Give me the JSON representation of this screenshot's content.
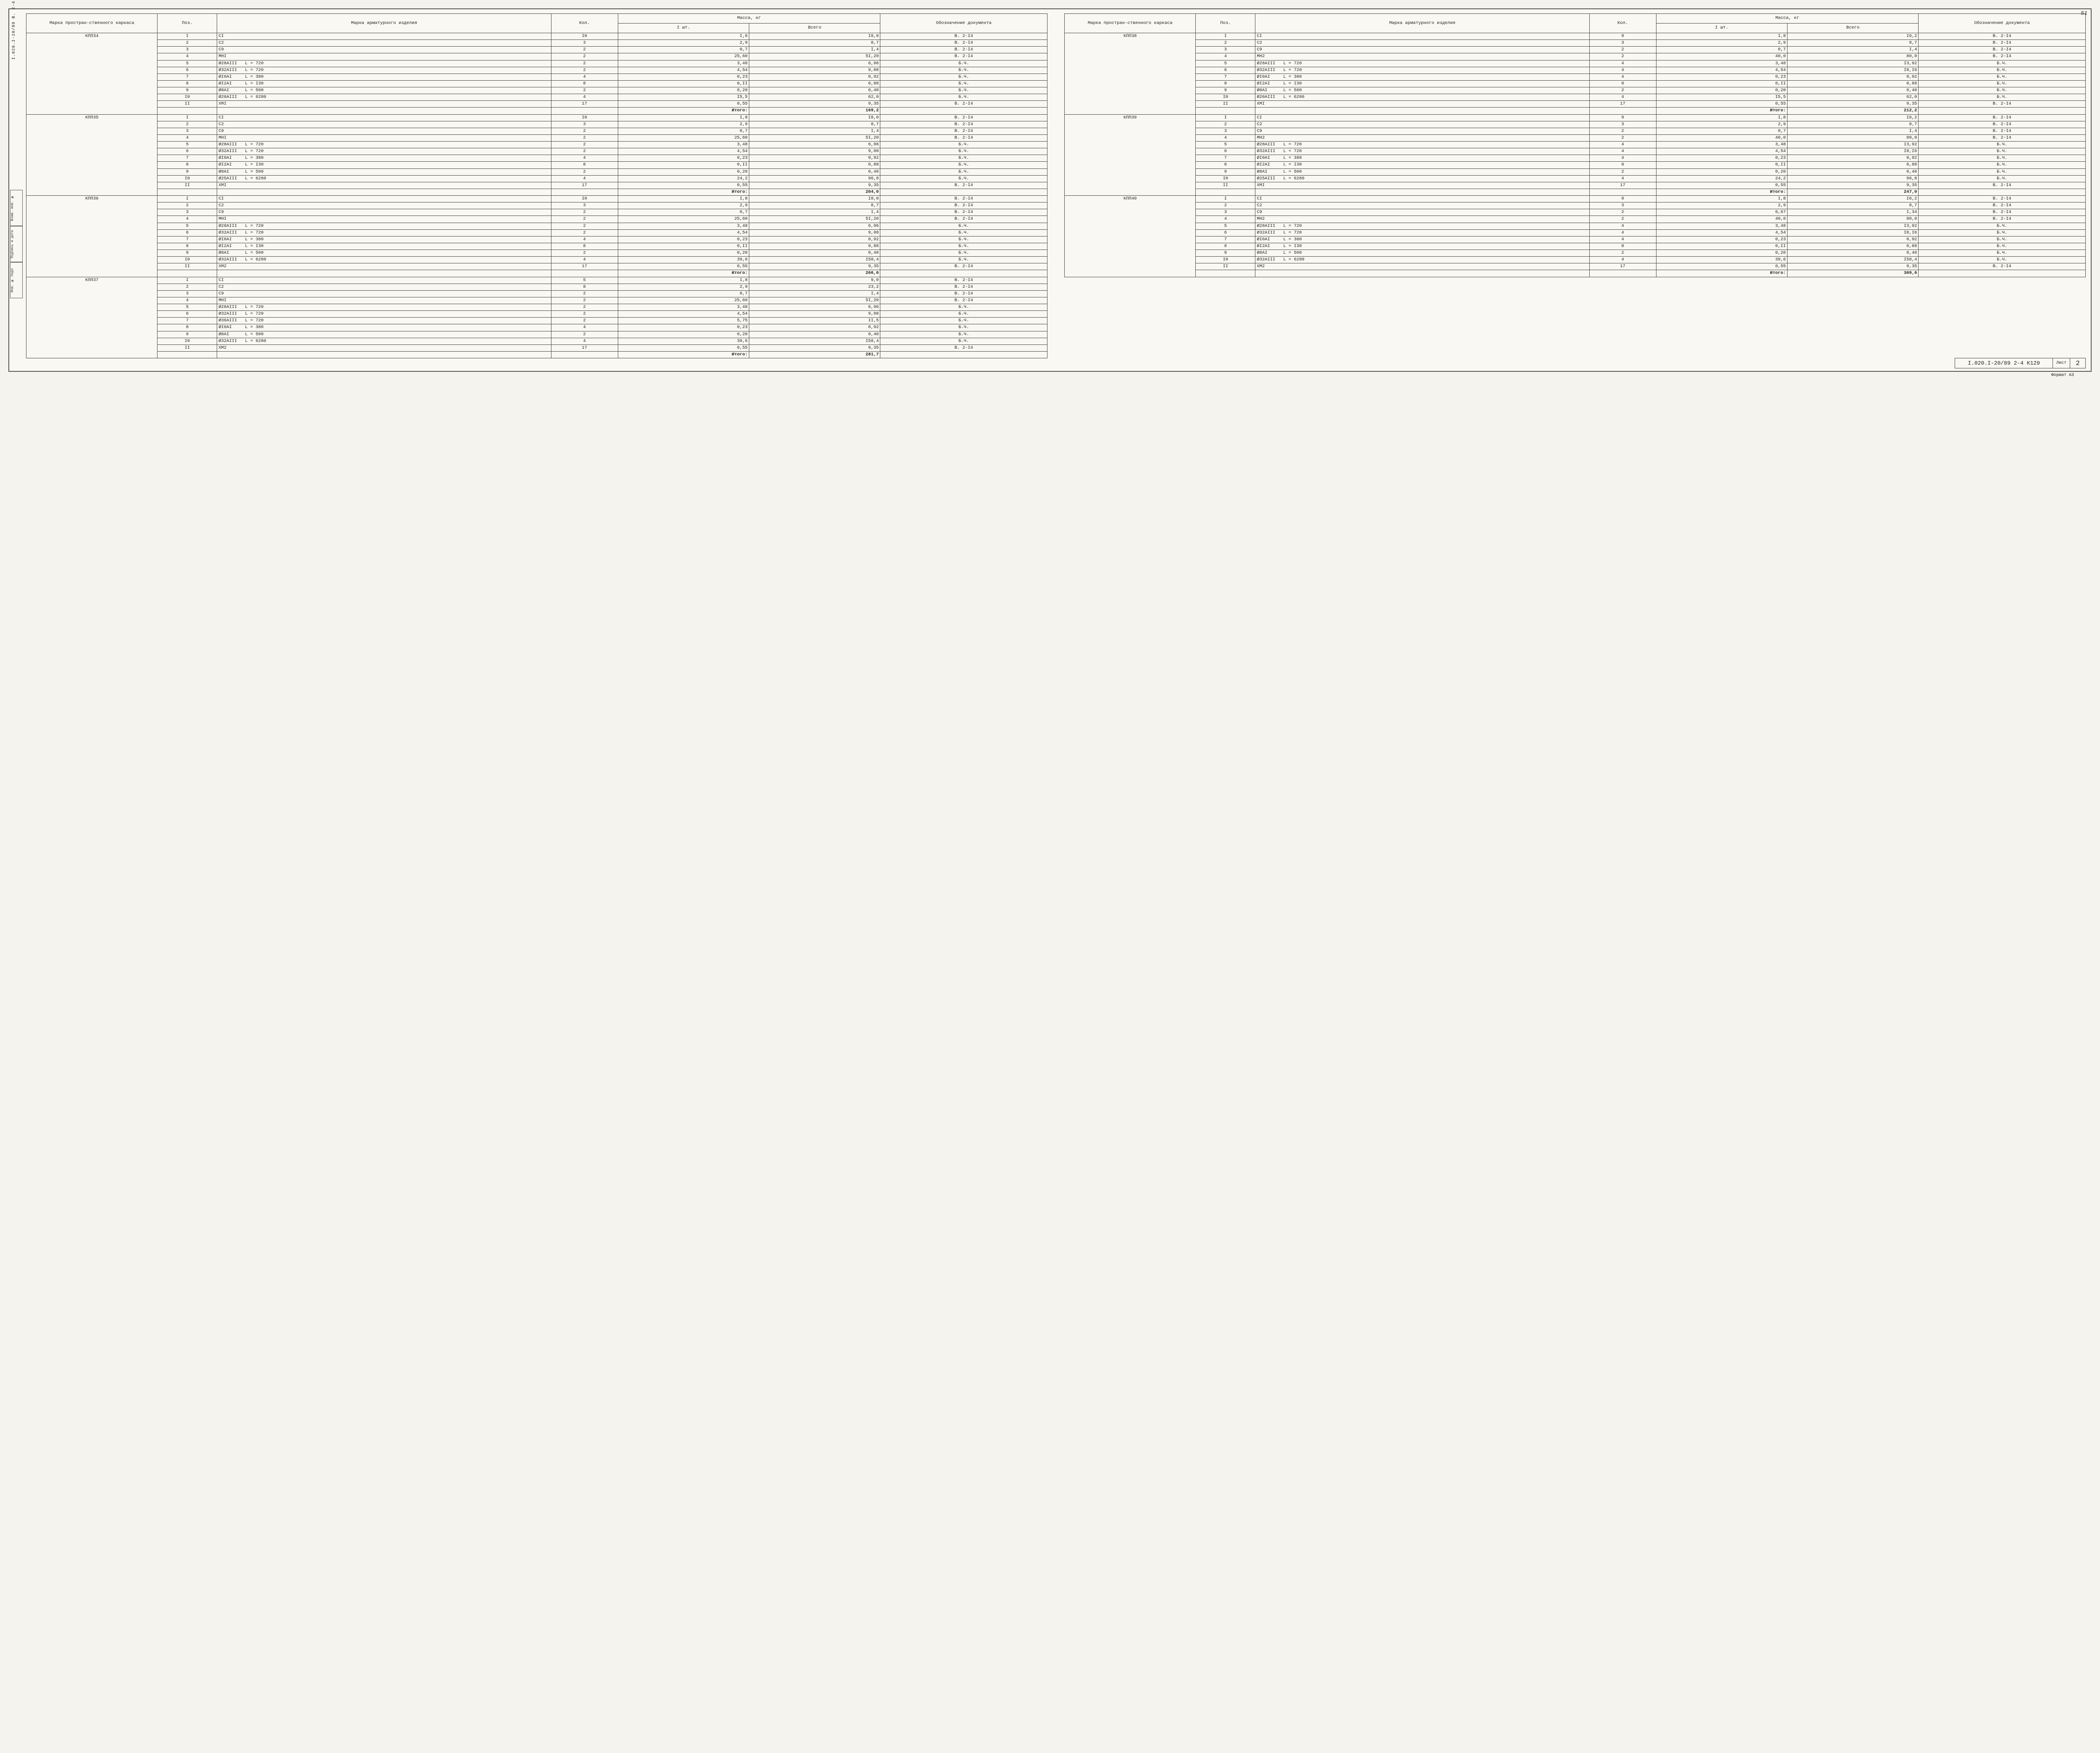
{
  "pageTop": "51",
  "sideText": "I.020.I-20/89  В. 2-4  ч.2",
  "sideBoxes": [
    "Взам. инв. №",
    "Подпись и дата",
    "Инв. № подл"
  ],
  "headers": {
    "karkas": "Марка простран-ственного каркаса",
    "pos": "Поз.",
    "marka": "Марка арматурного изделия",
    "kol": "Кол.",
    "massa": "Масса, кг",
    "m1": "I шт.",
    "m2": "Всего",
    "doc": "Обозначение документа"
  },
  "itogoLabel": "Итого:",
  "blocks": [
    {
      "karkas": "КПП34",
      "rows": [
        [
          "I",
          "CI",
          "I0",
          "I,8",
          "I8,0",
          "В. 2-I4"
        ],
        [
          "2",
          "C2",
          "3",
          "2,9",
          "8,7",
          "В. 2-I4"
        ],
        [
          "3",
          "C9",
          "2",
          "0,7",
          "I,4",
          "В. 2-I4"
        ],
        [
          "4",
          "МНI",
          "2",
          "25,60",
          "5I,20",
          "В. 2-I4"
        ],
        [
          "5",
          "Ø28АIII   L = 720",
          "2",
          "3,48",
          "6,96",
          "Б.Ч."
        ],
        [
          "6",
          "Ø32АIII   L = 720",
          "2",
          "4,54",
          "9,08",
          "Б.Ч."
        ],
        [
          "7",
          "ØI0AI     L = 380",
          "4",
          "0,23",
          "0,92",
          "Б.Ч."
        ],
        [
          "8",
          "ØI2AI     L = I30",
          "8",
          "0,II",
          "0,88",
          "Б.Ч."
        ],
        [
          "9",
          "Ø8AI      L = 500",
          "2",
          "0,20",
          "0,40",
          "Б.Ч."
        ],
        [
          "I0",
          "Ø20АIII   L = 6280",
          "4",
          "I5,5",
          "62,0",
          "Б.Ч."
        ],
        [
          "II",
          "ХМI",
          "17",
          "0,55",
          "9,35",
          "В. 2-I4"
        ]
      ],
      "itogo": "169,2"
    },
    {
      "karkas": "КПП35",
      "rows": [
        [
          "I",
          "CI",
          "I0",
          "I,8",
          "I8,0",
          "В. 2-I4"
        ],
        [
          "2",
          "C2",
          "3",
          "2,9",
          "8,7",
          "В. 2-I4"
        ],
        [
          "3",
          "C9",
          "2",
          "0,7",
          "I,4",
          "В. 2-I4"
        ],
        [
          "4",
          "МНI",
          "2",
          "25,60",
          "5I,20",
          "В. 2-I4"
        ],
        [
          "5",
          "Ø28АIII   L = 720",
          "2",
          "3,48",
          "6,96",
          "Б.Ч."
        ],
        [
          "6",
          "Ø32АIII   L = 720",
          "2",
          "4,54",
          "9,08",
          "Б.Ч."
        ],
        [
          "7",
          "ØI0AI     L = 380",
          "4",
          "0,23",
          "0,92",
          "Б.Ч."
        ],
        [
          "8",
          "ØI2AI     L = I30",
          "8",
          "0,II",
          "0,88",
          "Б.Ч."
        ],
        [
          "9",
          "Ø8AI      L = 500",
          "2",
          "0,20",
          "0,40",
          "Б.Ч."
        ],
        [
          "I0",
          "Ø25АIII   L = 6280",
          "4",
          "24,2",
          "96,8",
          "Б.Ч."
        ],
        [
          "II",
          "ХМI",
          "17",
          "0,55",
          "9,35",
          "В. 2-I4"
        ]
      ],
      "itogo": "204,0"
    },
    {
      "karkas": "КПП36",
      "rows": [
        [
          "I",
          "CI",
          "I0",
          "I,8",
          "I8,0",
          "В. 2-I4"
        ],
        [
          "2",
          "C2",
          "3",
          "2,9",
          "8,7",
          "В. 2-I4"
        ],
        [
          "3",
          "C9",
          "2",
          "0,7",
          "I,4",
          "В. 2-I4"
        ],
        [
          "4",
          "МНI",
          "2",
          "25,60",
          "5I,20",
          "В. 2-I4"
        ],
        [
          "5",
          "Ø28АIII   L = 720",
          "2",
          "3,48",
          "6,96",
          "Б.Ч."
        ],
        [
          "6",
          "Ø32АIII   L = 720",
          "2",
          "4,54",
          "9,08",
          "Б.Ч."
        ],
        [
          "7",
          "ØI0AI     L = 380",
          "4",
          "0,23",
          "0,92",
          "Б.Ч."
        ],
        [
          "8",
          "ØI2AI     L = I30",
          "8",
          "0,II",
          "0,88",
          "Б.Ч."
        ],
        [
          "9",
          "Ø8AI      L = 500",
          "2",
          "0,20",
          "0,40",
          "Б.Ч."
        ],
        [
          "I0",
          "Ø32АIII   L = 6280",
          "4",
          "39,6",
          "I58,4",
          "Б.Ч."
        ],
        [
          "II",
          "ХМ2",
          "17",
          "0,55",
          "9,35",
          "В. 2-I4"
        ]
      ],
      "itogo": "266,0"
    },
    {
      "karkas": "КПП37",
      "rows": [
        [
          "I",
          "CI",
          "5",
          "I,8",
          "9,0",
          "В. 2-I4"
        ],
        [
          "2",
          "C2",
          "8",
          "2,9",
          "23,2",
          "В. 2-I4"
        ],
        [
          "3",
          "C9",
          "2",
          "0,7",
          "I,4",
          "В. 2-I4"
        ],
        [
          "4",
          "МНI",
          "2",
          "25,60",
          "5I,20",
          "В. 2-I4"
        ],
        [
          "5",
          "Ø28АIII   L = 720",
          "2",
          "3,48",
          "6,96",
          "Б.Ч."
        ],
        [
          "6",
          "Ø32АIII   L = 720",
          "2",
          "4,54",
          "9,08",
          "Б.Ч."
        ],
        [
          "7",
          "Ø36АIII   L = 720",
          "2",
          "5,75",
          "II,5",
          "Б.Ч."
        ],
        [
          "8",
          "ØI0AI     L = 380",
          "4",
          "0,23",
          "0,92",
          "Б.Ч."
        ],
        [
          "9",
          "Ø8AI      L = 500",
          "2",
          "0,20",
          "0,40",
          "Б.Ч."
        ],
        [
          "I0",
          "Ø32АIII   L = 6280",
          "4",
          "39,6",
          "I58,4",
          "Б.Ч."
        ],
        [
          "II",
          "ХМ2",
          "17",
          "0,55",
          "9,35",
          "В. 2-I4"
        ]
      ],
      "itogo": "281,7"
    },
    {
      "karkas": "КПП38",
      "rows": [
        [
          "I",
          "CI",
          "9",
          "I,8",
          "I6,2",
          "В. 2-I4"
        ],
        [
          "2",
          "C2",
          "3",
          "2,9",
          "8,7",
          "В. 2-I4"
        ],
        [
          "3",
          "C9",
          "2",
          "0,7",
          "I,4",
          "В. 2-I4"
        ],
        [
          "4",
          "МН2",
          "2",
          "40,0",
          "80,0",
          "В. 2-I4"
        ],
        [
          "5",
          "Ø28АIII   L = 720",
          "4",
          "3,48",
          "I3,92",
          "Б.Ч."
        ],
        [
          "6",
          "Ø32АIII   L = 720",
          "4",
          "4,54",
          "I8,I6",
          "Б.Ч."
        ],
        [
          "7",
          "ØI0AI     L = 380",
          "4",
          "0,23",
          "0,92",
          "Б.Ч."
        ],
        [
          "8",
          "ØI2AI     L = I30",
          "8",
          "0,II",
          "0,88",
          "Б.Ч."
        ],
        [
          "9",
          "Ø8AI      L = 500",
          "2",
          "0,20",
          "0,40",
          "Б.Ч."
        ],
        [
          "I0",
          "Ø20АIII   L = 6280",
          "4",
          "I5,5",
          "62,0",
          "Б.Ч."
        ],
        [
          "II",
          "ХМI",
          "17",
          "0,55",
          "9,35",
          "В. 2-I4"
        ]
      ],
      "itogo": "212,2"
    },
    {
      "karkas": "КПП39",
      "rows": [
        [
          "I",
          "CI",
          "9",
          "I,8",
          "I6,2",
          "В. 2-I4"
        ],
        [
          "2",
          "C2",
          "3",
          "2,9",
          "8,7",
          "В. 2-I4"
        ],
        [
          "3",
          "C9",
          "2",
          "0,7",
          "I,4",
          "В. 2-I4"
        ],
        [
          "4",
          "МН2",
          "2",
          "40,0",
          "80,0",
          "В. 2-I4"
        ],
        [
          "5",
          "Ø28АIII   L = 720",
          "4",
          "3,48",
          "I3,92",
          "Б.Ч."
        ],
        [
          "6",
          "Ø32АIII   L = 720",
          "4",
          "4,54",
          "I8,I6",
          "Б.Ч."
        ],
        [
          "7",
          "ØI0AI     L = 380",
          "4",
          "0,23",
          "0,92",
          "Б.Ч."
        ],
        [
          "8",
          "ØI2AI     L = I30",
          "8",
          "0,II",
          "0,88",
          "Б.Ч."
        ],
        [
          "9",
          "Ø8AI      L = 500",
          "2",
          "0,20",
          "0,40",
          "Б.Ч."
        ],
        [
          "I0",
          "Ø25АIII   L = 6280",
          "4",
          "24,2",
          "96,8",
          "Б.Ч."
        ],
        [
          "II",
          "ХМI",
          "17",
          "0,55",
          "9,35",
          "В. 2-I4"
        ]
      ],
      "itogo": "247,0"
    },
    {
      "karkas": "КПП40",
      "rows": [
        [
          "I",
          "CI",
          "9",
          "I,8",
          "I6,2",
          "В. 2-I4"
        ],
        [
          "2",
          "C2",
          "3",
          "2,9",
          "8,7",
          "В. 2-I4"
        ],
        [
          "3",
          "C9",
          "2",
          "0,67",
          "I,34",
          "В. 2-I4"
        ],
        [
          "4",
          "МН2",
          "2",
          "40,0",
          "80,0",
          "В. 2-I4"
        ],
        [
          "5",
          "Ø28АIII   L = 720",
          "4",
          "3,48",
          "I3,92",
          "Б.Ч."
        ],
        [
          "6",
          "Ø32АIII   L = 720",
          "4",
          "4,54",
          "I8,I6",
          "Б.Ч."
        ],
        [
          "7",
          "ØI0AI     L = 380",
          "4",
          "0,23",
          "0,92",
          "Б.Ч."
        ],
        [
          "8",
          "ØI2AI     L = I30",
          "8",
          "0,II",
          "0,88",
          "Б.Ч."
        ],
        [
          "9",
          "Ø8AI      L = 500",
          "2",
          "0,20",
          "0,40",
          "Б.Ч."
        ],
        [
          "I0",
          "Ø32АIII   L = 6280",
          "4",
          "39,6",
          "I58,4",
          "Б.Ч."
        ],
        [
          "II",
          "ХМ2",
          "17",
          "0,55",
          "9,35",
          "В. 2-I4"
        ]
      ],
      "itogo": "309,0"
    }
  ],
  "footer": {
    "code": "I.020.I-20/89  2-4  К129",
    "listLabel": "Лист",
    "listNum": "2"
  },
  "bottomNote": "Формат А3"
}
